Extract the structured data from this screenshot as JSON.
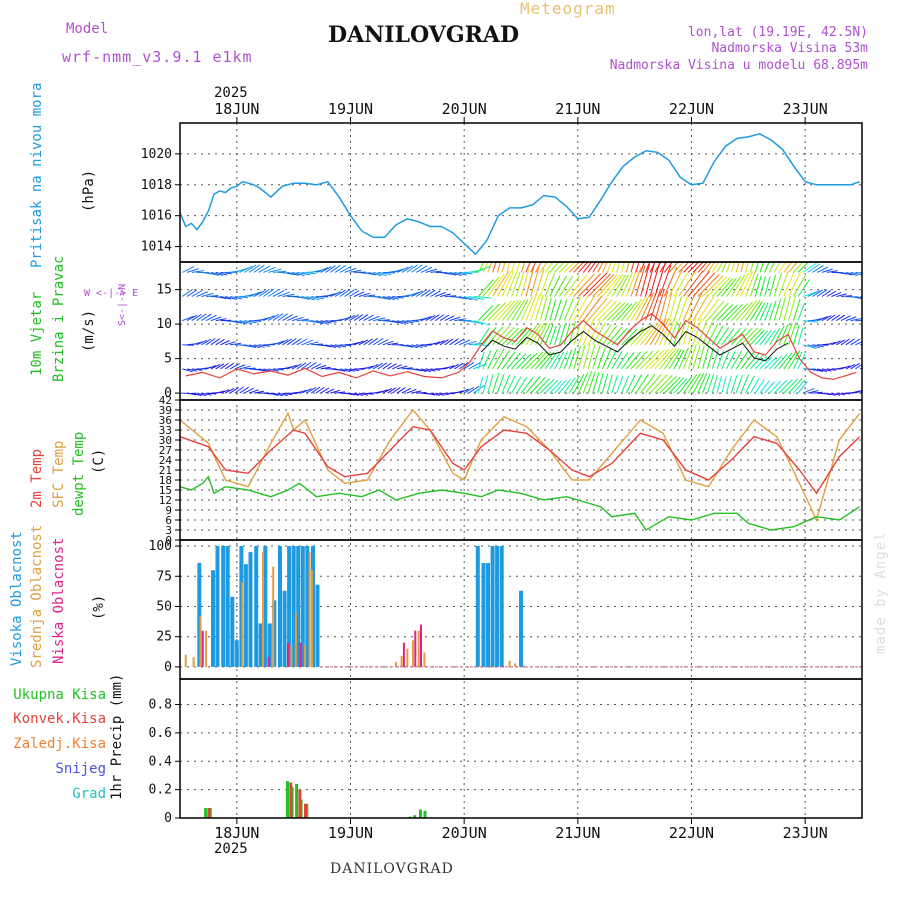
{
  "header": {
    "model_label": "Model",
    "model_name": "wrf-nmm_v3.9.1 e1km",
    "station": "DANILOVGRAD",
    "subtitle": "Meteogram",
    "lonlat": "lon,lat (19.19E, 42.5N)",
    "elevation": "Nadmorska Visina 53m",
    "model_elevation": "Nadmorska Visina u modelu 68.895m"
  },
  "footer": {
    "station": "DANILOVGRAD",
    "credit": "made by Angel"
  },
  "colors": {
    "pressure": "#1e9be0",
    "temp2m": "#e8403a",
    "sfc": "#e0a040",
    "dewpt": "#22c022",
    "high_cloud": "#1e9be0",
    "mid_cloud": "#e0a040",
    "low_cloud": "#e0208a",
    "total_precip": "#22c022",
    "conv_precip": "#e8403a",
    "frozen_precip": "#f08030",
    "snow": "#5050e0",
    "hail": "#20c0c0",
    "label_purple": "#b050d0"
  },
  "time_axis": {
    "year": "2025",
    "day_labels": [
      "18JUN",
      "19JUN",
      "20JUN",
      "21JUN",
      "22JUN",
      "23JUN"
    ],
    "day_positions": [
      18,
      19,
      20,
      21,
      22,
      23
    ],
    "range": [
      17.5,
      23.5
    ]
  },
  "chart_data": [
    {
      "type": "line",
      "panel": "pressure",
      "ylabel_name": "Pritisak na nivou mora",
      "ylabel_unit": "(hPa)",
      "ylim": [
        1013,
        1022
      ],
      "yticks": [
        1014,
        1016,
        1018,
        1020
      ],
      "series": [
        {
          "name": "Pritisak na nivou mora",
          "x": [
            17.5,
            17.55,
            17.6,
            17.65,
            17.7,
            17.75,
            17.8,
            17.85,
            17.9,
            17.95,
            18.0,
            18.05,
            18.1,
            18.15,
            18.2,
            18.3,
            18.4,
            18.5,
            18.6,
            18.7,
            18.8,
            18.9,
            19.0,
            19.1,
            19.2,
            19.3,
            19.4,
            19.5,
            19.6,
            19.7,
            19.8,
            19.9,
            20.0,
            20.1,
            20.2,
            20.3,
            20.4,
            20.5,
            20.6,
            20.7,
            20.8,
            20.9,
            21.0,
            21.1,
            21.2,
            21.3,
            21.4,
            21.5,
            21.6,
            21.7,
            21.8,
            21.9,
            22.0,
            22.1,
            22.2,
            22.3,
            22.4,
            22.5,
            22.6,
            22.7,
            22.8,
            22.9,
            23.0,
            23.1,
            23.15,
            23.2,
            23.3,
            23.4,
            23.48
          ],
          "y": [
            1016.2,
            1015.3,
            1015.5,
            1015.1,
            1015.6,
            1016.3,
            1017.4,
            1017.6,
            1017.5,
            1017.8,
            1017.9,
            1018.2,
            1018.1,
            1018.0,
            1017.8,
            1017.2,
            1017.9,
            1018.1,
            1018.1,
            1018.0,
            1018.2,
            1017.2,
            1016.0,
            1015.0,
            1014.6,
            1014.6,
            1015.4,
            1015.8,
            1015.6,
            1015.3,
            1015.3,
            1014.9,
            1014.2,
            1013.5,
            1014.4,
            1016.0,
            1016.5,
            1016.5,
            1016.7,
            1017.3,
            1017.2,
            1016.6,
            1015.8,
            1015.9,
            1017.0,
            1018.2,
            1019.2,
            1019.8,
            1020.2,
            1020.1,
            1019.6,
            1018.5,
            1018.0,
            1018.1,
            1019.5,
            1020.5,
            1021.0,
            1021.1,
            1021.3,
            1020.9,
            1020.3,
            1019.2,
            1018.2,
            1018.0,
            1018.0,
            1018.0,
            1018.0,
            1018.0,
            1018.2
          ]
        }
      ]
    },
    {
      "type": "line",
      "panel": "wind",
      "ylabel_name_1": "10m Vjetar",
      "ylabel_name_2": "Brzina i Pravac",
      "ylabel_unit": "(m/s)",
      "compass": "W <-|-> E",
      "compass_ns": "S<-|->N",
      "ylim": [
        -1,
        19
      ],
      "yticks": [
        0,
        5,
        10,
        15
      ],
      "series": [
        {
          "name": "wind speed",
          "x": [
            17.55,
            17.7,
            17.85,
            18.0,
            18.15,
            18.3,
            18.45,
            18.6,
            18.75,
            18.9,
            19.05,
            19.2,
            19.35,
            19.5,
            19.65,
            19.8,
            19.95,
            20.05,
            20.15,
            20.25,
            20.35,
            20.45,
            20.55,
            20.65,
            20.75,
            20.85,
            20.95,
            21.05,
            21.15,
            21.25,
            21.35,
            21.45,
            21.55,
            21.65,
            21.75,
            21.85,
            21.95,
            22.05,
            22.15,
            22.25,
            22.35,
            22.45,
            22.55,
            22.65,
            22.75,
            22.85,
            22.95,
            23.05,
            23.15,
            23.25,
            23.35,
            23.45
          ],
          "y": [
            2.5,
            3.0,
            2.2,
            3.5,
            2.8,
            3.2,
            2.6,
            3.6,
            2.4,
            3.0,
            2.2,
            3.2,
            2.5,
            3.1,
            2.4,
            2.2,
            3.0,
            4.5,
            7.0,
            9.0,
            8.0,
            7.5,
            9.5,
            8.5,
            6.5,
            7.0,
            9.0,
            10.5,
            9.0,
            8.0,
            7.0,
            9.0,
            10.5,
            11.5,
            10.0,
            8.0,
            10.5,
            9.5,
            8.0,
            6.5,
            7.5,
            8.5,
            6.0,
            5.5,
            7.5,
            8.5,
            5.0,
            3.0,
            2.2,
            2.0,
            2.5,
            3.0
          ]
        }
      ]
    },
    {
      "type": "line",
      "panel": "temperature",
      "ylabel_name_1": "2m Temp",
      "ylabel_name_2": "SFC Temp",
      "ylabel_name_3": "dewpt Temp",
      "ylabel_unit": "(C)",
      "ylim": [
        0,
        42
      ],
      "yticks": [
        0,
        3,
        6,
        9,
        12,
        15,
        18,
        21,
        24,
        27,
        30,
        33,
        36,
        39,
        42
      ],
      "series": [
        {
          "name": "2m Temp",
          "x": [
            17.5,
            17.75,
            17.9,
            18.1,
            18.3,
            18.5,
            18.6,
            18.8,
            18.95,
            19.15,
            19.35,
            19.55,
            19.7,
            19.9,
            20.0,
            20.15,
            20.35,
            20.55,
            20.75,
            20.95,
            21.1,
            21.3,
            21.55,
            21.75,
            21.95,
            22.15,
            22.35,
            22.55,
            22.75,
            22.95,
            23.1,
            23.3,
            23.48
          ],
          "y": [
            31,
            28,
            21,
            20,
            27,
            33,
            32,
            22,
            19,
            20,
            27,
            34,
            33,
            23,
            21,
            28,
            33,
            32,
            27,
            21,
            19,
            23,
            32,
            30,
            21,
            18,
            24,
            31,
            29,
            21,
            14,
            25,
            31
          ]
        },
        {
          "name": "SFC Temp",
          "x": [
            17.5,
            17.75,
            17.9,
            18.1,
            18.3,
            18.45,
            18.5,
            18.6,
            18.8,
            18.95,
            19.15,
            19.35,
            19.55,
            19.7,
            19.9,
            20.0,
            20.15,
            20.35,
            20.55,
            20.75,
            20.95,
            21.1,
            21.3,
            21.55,
            21.75,
            21.95,
            22.15,
            22.35,
            22.55,
            22.75,
            22.95,
            23.1,
            23.3,
            23.48
          ],
          "y": [
            36,
            29,
            18,
            16,
            29,
            38,
            33,
            36,
            21,
            17,
            18,
            30,
            39,
            33,
            20,
            18,
            30,
            37,
            34,
            27,
            18,
            18,
            26,
            36,
            32,
            18,
            16,
            27,
            36,
            31,
            17,
            6,
            30,
            38
          ]
        },
        {
          "name": "dewpt Temp",
          "x": [
            17.5,
            17.6,
            17.7,
            17.75,
            17.8,
            17.9,
            18.1,
            18.3,
            18.45,
            18.55,
            18.7,
            18.9,
            19.1,
            19.25,
            19.4,
            19.6,
            19.8,
            20.0,
            20.15,
            20.3,
            20.5,
            20.7,
            20.9,
            21.0,
            21.2,
            21.3,
            21.5,
            21.6,
            21.8,
            22.0,
            22.2,
            22.4,
            22.5,
            22.7,
            22.9,
            23.1,
            23.3,
            23.48
          ],
          "y": [
            16,
            15,
            17,
            19,
            14,
            16,
            15,
            13,
            15,
            17,
            13,
            14,
            13,
            15,
            12,
            14,
            15,
            14,
            13,
            15,
            14,
            12,
            13,
            12,
            10,
            7,
            8,
            3,
            7,
            6,
            8,
            8,
            5,
            3,
            4,
            7,
            6,
            10
          ]
        }
      ]
    },
    {
      "type": "bar",
      "panel": "cloud",
      "ylabel_name_1": "Visoka Oblacnost",
      "ylabel_name_2": "Srednja Oblacnost",
      "ylabel_name_3": "Niska Oblacnost",
      "ylabel_unit": "(%)",
      "ylim": [
        -10,
        105
      ],
      "yticks": [
        0,
        25,
        50,
        75,
        100
      ],
      "series": [
        {
          "name": "Visoka Oblacnost",
          "x": [
            17.67,
            17.79,
            17.83,
            17.88,
            17.92,
            17.96,
            18.0,
            18.04,
            18.08,
            18.12,
            18.17,
            18.21,
            18.25,
            18.29,
            18.33,
            18.38,
            18.42,
            18.46,
            18.5,
            18.54,
            18.58,
            18.62,
            18.67,
            18.71,
            20.12,
            20.17,
            20.21,
            20.25,
            20.29,
            20.33,
            20.5
          ],
          "y": [
            86,
            80,
            100,
            100,
            100,
            58,
            22,
            100,
            85,
            95,
            100,
            36,
            100,
            36,
            55,
            100,
            63,
            100,
            100,
            100,
            100,
            100,
            100,
            68,
            100,
            86,
            86,
            100,
            100,
            100,
            63
          ]
        },
        {
          "name": "Srednja Oblacnost",
          "x": [
            17.55,
            17.62,
            17.68,
            17.73,
            18.05,
            18.23,
            18.32,
            18.48,
            18.52,
            18.6,
            18.64,
            18.66,
            19.4,
            19.45,
            19.5,
            19.55,
            19.6,
            19.65,
            20.4,
            20.45
          ],
          "y": [
            10,
            8,
            42,
            30,
            70,
            95,
            83,
            18,
            45,
            18,
            95,
            80,
            4,
            9,
            15,
            22,
            30,
            12,
            5,
            3
          ]
        },
        {
          "name": "Niska Oblacnost",
          "x": [
            17.7,
            18.28,
            18.45,
            18.56,
            19.47,
            19.57,
            19.62
          ],
          "y": [
            30,
            8,
            20,
            20,
            20,
            30,
            35
          ]
        }
      ]
    },
    {
      "type": "bar",
      "panel": "precip",
      "legend": [
        "Ukupna Kisa",
        "Konvek.Kisa",
        "Zaledj.Kisa",
        "Snijeg",
        "Grad"
      ],
      "ylabel_unit": "1hr Precip (mm)",
      "ylim": [
        0,
        0.98
      ],
      "yticks": [
        0,
        0.2,
        0.4,
        0.6,
        0.8
      ],
      "series": [
        {
          "name": "Ukupna Kisa",
          "x": [
            17.73,
            17.77,
            18.45,
            18.49,
            18.53,
            18.57,
            18.62,
            19.53,
            19.57,
            19.62,
            19.66
          ],
          "y": [
            0.07,
            0.07,
            0.26,
            0.22,
            0.24,
            0.13,
            0.1,
            0.01,
            0.02,
            0.06,
            0.05
          ]
        },
        {
          "name": "Konvek.Kisa",
          "x": [
            17.75,
            18.47,
            18.55,
            18.6
          ],
          "y": [
            0.07,
            0.25,
            0.2,
            0.1
          ]
        }
      ]
    }
  ]
}
